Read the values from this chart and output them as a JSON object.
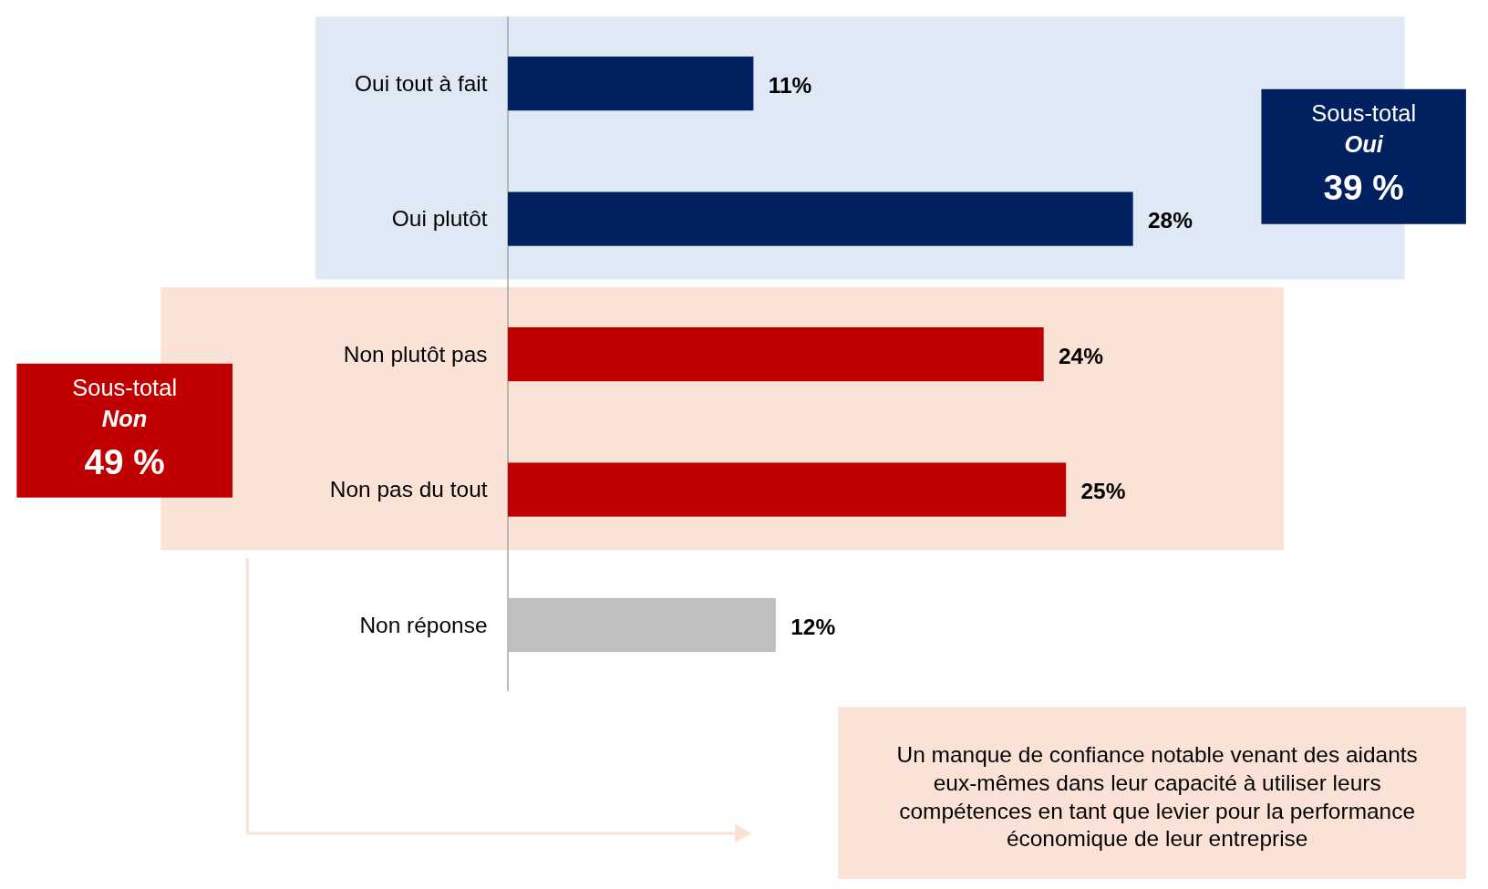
{
  "chart_data": {
    "type": "bar",
    "orientation": "horizontal",
    "categories": [
      "Oui tout à fait",
      "Oui plutôt",
      "Non plutôt pas",
      "Non pas du tout",
      "Non réponse"
    ],
    "values": [
      11,
      28,
      24,
      25,
      12
    ],
    "colors": [
      "#002060",
      "#002060",
      "#c00000",
      "#c00000",
      "#bfbfbf"
    ],
    "value_labels": [
      "11%",
      "28%",
      "24%",
      "25%",
      "12%"
    ],
    "bands": [
      {
        "axis": "y",
        "from": "Oui tout à fait",
        "to": "Oui plutôt",
        "label": "Sous-total\nOui\n39 %",
        "color": "#dee9f5"
      },
      {
        "axis": "y",
        "from": "Non plutôt pas",
        "to": "Non pas du tout",
        "label": "Sous-total\nNon\n49 %",
        "color": "#fae3d6"
      }
    ],
    "annotations": [
      "Un manque de confiance notable venant des aidants eux-mêmes dans leur capacité à utiliser leurs compétences en tant que levier pour la performance économique de leur entreprise"
    ]
  }
}
